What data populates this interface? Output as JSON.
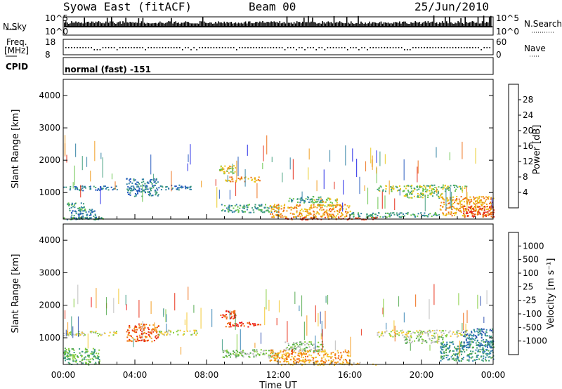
{
  "header": {
    "station": "Syowa East (fitACF)",
    "beam": "Beam 00",
    "date": "25/Jun/2010"
  },
  "panels": {
    "nsky_label": "N.Sky",
    "nsky_ticks": [
      "10^5",
      "10^0"
    ],
    "nsearch_label": "N.Search",
    "nsearch_ticks": [
      "10^5",
      "10^0"
    ],
    "freq_label_1": "Freq.",
    "freq_label_2": "[MHz]",
    "freq_ticks": [
      "18",
      "8"
    ],
    "nave_label": "Nave",
    "nave_ticks": [
      "60",
      "0"
    ],
    "cpid_label": "CPID",
    "cpid_value": "normal (fast) -151"
  },
  "colors": {
    "power": [
      "#1d22e6",
      "#2156bd",
      "#2e7fa3",
      "#3e9d7a",
      "#65c34a",
      "#e9c81a",
      "#f09a19",
      "#ee6a12",
      "#e52814"
    ],
    "velocity": [
      "#2c4fb0",
      "#2f7fb3",
      "#3a9a7f",
      "#4fa84a",
      "#82cc38",
      "#bdbdbd",
      "#f4c72c",
      "#f49a1a",
      "#ef6a14",
      "#e82a12",
      "#ef1010"
    ]
  },
  "chart_data": [
    {
      "type": "heatmap",
      "name": "power",
      "xlabel": "",
      "ylabel": "Slant Range [km]",
      "x_range": [
        "00:00",
        "24:00"
      ],
      "ylim": [
        180,
        4500
      ],
      "y_ticks": [
        "4000",
        "3000",
        "2000",
        "1000"
      ],
      "colorbar_label": "Power [dB]",
      "colorbar_range": [
        0,
        32
      ],
      "colorbar_ticks": [
        "28",
        "24",
        "20",
        "16",
        "12",
        "8",
        "4"
      ],
      "blobs": [
        {
          "t": [
            0.0,
            2.2
          ],
          "r": [
            180,
            260
          ],
          "level": 3
        },
        {
          "t": [
            0.0,
            3.0
          ],
          "r": [
            1080,
            1220
          ],
          "level": 2
        },
        {
          "t": [
            0.2,
            1.2
          ],
          "r": [
            400,
            700
          ],
          "level": 3
        },
        {
          "t": [
            0.4,
            1.8
          ],
          "r": [
            180,
            500
          ],
          "level": 2
        },
        {
          "t": [
            3.5,
            5.3
          ],
          "r": [
            900,
            1450
          ],
          "level": 2
        },
        {
          "t": [
            5.3,
            7.2
          ],
          "r": [
            1100,
            1250
          ],
          "level": 2
        },
        {
          "t": [
            8.7,
            9.6
          ],
          "r": [
            1600,
            1850
          ],
          "level": 5
        },
        {
          "t": [
            9.0,
            11.0
          ],
          "r": [
            1350,
            1500
          ],
          "level": 6
        },
        {
          "t": [
            8.8,
            12.0
          ],
          "r": [
            400,
            650
          ],
          "level": 3
        },
        {
          "t": [
            11.5,
            16.0
          ],
          "r": [
            250,
            650
          ],
          "level": 6
        },
        {
          "t": [
            12.0,
            17.5
          ],
          "r": [
            180,
            260
          ],
          "level": 8
        },
        {
          "t": [
            12.5,
            14.5
          ],
          "r": [
            700,
            900
          ],
          "level": 3
        },
        {
          "t": [
            14.0,
            15.3
          ],
          "r": [
            600,
            850
          ],
          "level": 5
        },
        {
          "t": [
            17.5,
            22.5
          ],
          "r": [
            1050,
            1250
          ],
          "level": 4
        },
        {
          "t": [
            19.0,
            21.2
          ],
          "r": [
            850,
            1050
          ],
          "level": 4
        },
        {
          "t": [
            21.0,
            24.0
          ],
          "r": [
            300,
            900
          ],
          "level": 6
        },
        {
          "t": [
            22.3,
            24.0
          ],
          "r": [
            250,
            600
          ],
          "level": 8
        },
        {
          "t": [
            16.0,
            21.0
          ],
          "r": [
            250,
            400
          ],
          "level": 3
        }
      ]
    },
    {
      "type": "heatmap",
      "name": "velocity",
      "xlabel": "Time UT",
      "ylabel": "Slant Range [km]",
      "x_range": [
        "00:00",
        "24:00"
      ],
      "x_ticks": [
        "00:00",
        "04:00",
        "08:00",
        "12:00",
        "16:00",
        "20:00",
        "00:00"
      ],
      "ylim": [
        180,
        4500
      ],
      "y_ticks": [
        "4000",
        "3000",
        "2000",
        "1000"
      ],
      "colorbar_label": "Velocity [m s⁻¹]",
      "colorbar_ticks": [
        "1000",
        "500",
        "100",
        "25",
        "-25",
        "-100",
        "-500",
        "-1000"
      ],
      "blobs": [
        {
          "t": [
            0.0,
            2.0
          ],
          "r": [
            180,
            700
          ],
          "level": 3
        },
        {
          "t": [
            0.0,
            3.0
          ],
          "r": [
            1080,
            1220
          ],
          "level": 5
        },
        {
          "t": [
            3.5,
            5.3
          ],
          "r": [
            900,
            1450
          ],
          "level": 8
        },
        {
          "t": [
            5.3,
            7.5
          ],
          "r": [
            1100,
            1250
          ],
          "level": 5
        },
        {
          "t": [
            8.7,
            9.6
          ],
          "r": [
            1600,
            1850
          ],
          "level": 9
        },
        {
          "t": [
            9.0,
            11.0
          ],
          "r": [
            1350,
            1500
          ],
          "level": 9
        },
        {
          "t": [
            8.8,
            12.0
          ],
          "r": [
            400,
            650
          ],
          "level": 4
        },
        {
          "t": [
            11.5,
            16.0
          ],
          "r": [
            250,
            650
          ],
          "level": 7
        },
        {
          "t": [
            12.0,
            17.5
          ],
          "r": [
            180,
            260
          ],
          "level": 6
        },
        {
          "t": [
            12.3,
            14.5
          ],
          "r": [
            600,
            900
          ],
          "level": 4
        },
        {
          "t": [
            17.5,
            22.5
          ],
          "r": [
            1050,
            1250
          ],
          "level": 5
        },
        {
          "t": [
            19.0,
            21.2
          ],
          "r": [
            850,
            1050
          ],
          "level": 4
        },
        {
          "t": [
            21.0,
            24.0
          ],
          "r": [
            300,
            900
          ],
          "level": 2
        },
        {
          "t": [
            22.3,
            24.0
          ],
          "r": [
            700,
            1300
          ],
          "level": 1
        }
      ]
    }
  ]
}
